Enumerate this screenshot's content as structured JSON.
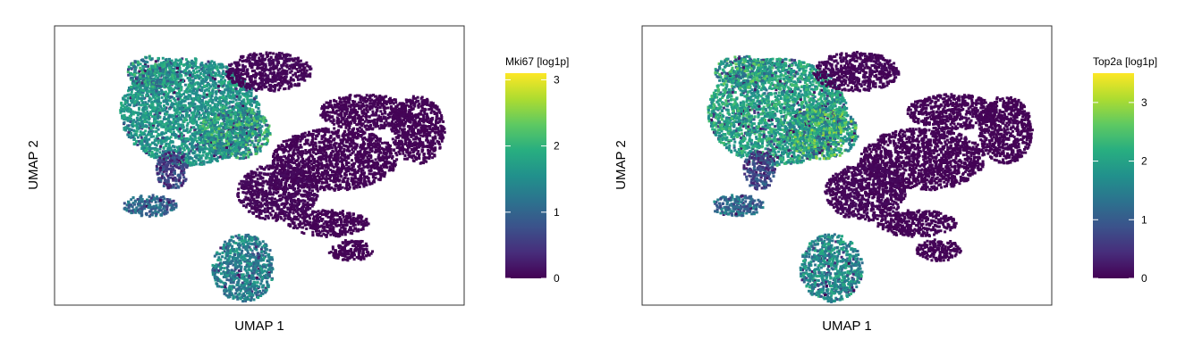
{
  "figure": {
    "panels": [
      {
        "xlabel": "UMAP 1",
        "ylabel": "UMAP 2",
        "legend_title": "Mki67 [log1p]",
        "color_scale": "viridis",
        "color_range": [
          0,
          3.1
        ],
        "ticks": [
          "0",
          "1",
          "2",
          "3"
        ]
      },
      {
        "xlabel": "UMAP 1",
        "ylabel": "UMAP 2",
        "legend_title": "Top2a [log1p]",
        "color_scale": "viridis",
        "color_range": [
          0,
          3.5
        ],
        "ticks": [
          "0",
          "1",
          "2",
          "3"
        ]
      }
    ]
  },
  "chart_data": [
    {
      "type": "scatter",
      "xlabel": "UMAP 1",
      "ylabel": "UMAP 2",
      "color_label": "Mki67 [log1p]",
      "color_min": 0,
      "color_max": 3.1,
      "colorbar_ticks": [
        0,
        1,
        2,
        3
      ],
      "grid": false,
      "legend_position": "right",
      "clusters": [
        {
          "region": "upper-left",
          "expression_level": "moderate-high (≈1–2.5)"
        },
        {
          "region": "lower-center",
          "expression_level": "moderate (≈1–2), local max ≈3"
        },
        {
          "region": "left-small",
          "expression_level": "moderate (≈1–1.5)"
        },
        {
          "region": "right and top",
          "expression_level": "near 0"
        }
      ]
    },
    {
      "type": "scatter",
      "xlabel": "UMAP 1",
      "ylabel": "UMAP 2",
      "color_label": "Top2a [log1p]",
      "color_min": 0,
      "color_max": 3.5,
      "colorbar_ticks": [
        0,
        1,
        2,
        3
      ],
      "grid": false,
      "legend_position": "right",
      "clusters": [
        {
          "region": "upper-left",
          "expression_level": "high (≈2–3.3)"
        },
        {
          "region": "lower-center",
          "expression_level": "moderate (≈1–2)"
        },
        {
          "region": "left-small",
          "expression_level": "low-moderate"
        },
        {
          "region": "right and top",
          "expression_level": "near 0"
        }
      ]
    }
  ],
  "colors": {
    "viridis": [
      "#440154",
      "#472d7b",
      "#3b528b",
      "#2c728e",
      "#21918c",
      "#28ae80",
      "#5ec962",
      "#addc30",
      "#fde725"
    ],
    "frame": "#333333",
    "text": "#000000"
  }
}
